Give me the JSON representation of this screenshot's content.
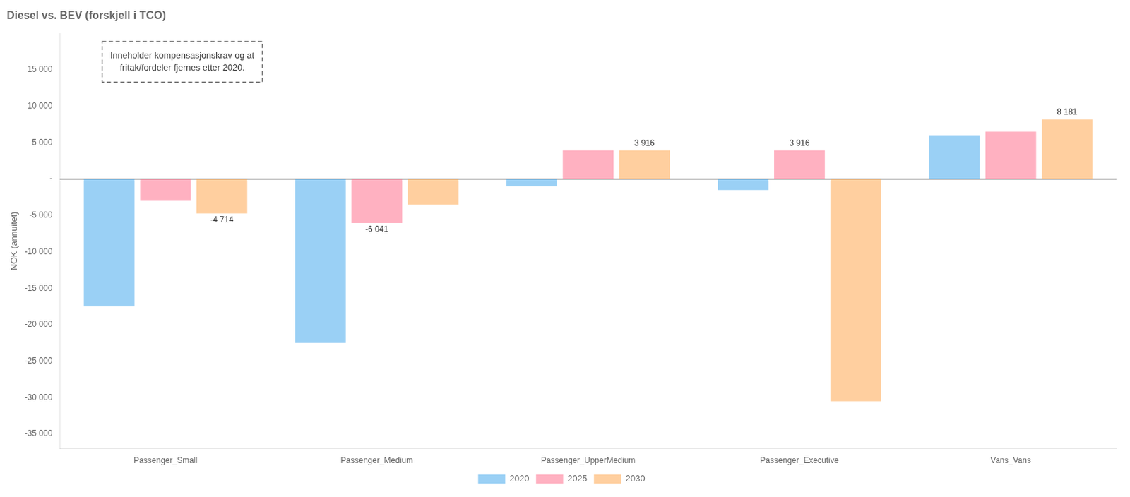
{
  "chart_data": {
    "type": "bar",
    "title": "Diesel vs. BEV (forskjell i TCO)",
    "ylabel": "NOK (annuitet)",
    "categories": [
      "Passenger_Small",
      "Passenger_Medium",
      "Passenger_UpperMedium",
      "Passenger_Executive",
      "Vans_Vans"
    ],
    "series": [
      {
        "name": "2020",
        "values": [
          -17500,
          -22500,
          -1000,
          -1500,
          6000
        ]
      },
      {
        "name": "2025",
        "values": [
          -3000,
          -6041,
          3916,
          3916,
          6500
        ],
        "value_labels": [
          null,
          "-6 041",
          null,
          "3 916",
          null
        ]
      },
      {
        "name": "2030",
        "values": [
          -4714,
          -3500,
          3916,
          -30500,
          8181
        ],
        "value_labels": [
          "-4 714",
          null,
          "3 916",
          null,
          "8 181"
        ]
      }
    ],
    "ylim": [
      -37000,
      20000
    ],
    "yticks": [
      {
        "value": -35000,
        "label": "-35 000"
      },
      {
        "value": -30000,
        "label": "-30 000"
      },
      {
        "value": -25000,
        "label": "-25 000"
      },
      {
        "value": -20000,
        "label": "-20 000"
      },
      {
        "value": -15000,
        "label": "-15 000"
      },
      {
        "value": -10000,
        "label": "-10 000"
      },
      {
        "value": -5000,
        "label": "-5 000"
      },
      {
        "value": 0,
        "label": "-"
      },
      {
        "value": 5000,
        "label": "5 000"
      },
      {
        "value": 10000,
        "label": "10 000"
      },
      {
        "value": 15000,
        "label": "15 000"
      }
    ],
    "annotations": [
      "Inneholder kompensasjonskrav og at\nfritak/fordeler fjernes etter 2020."
    ],
    "legend": "bottom",
    "grid": false
  }
}
